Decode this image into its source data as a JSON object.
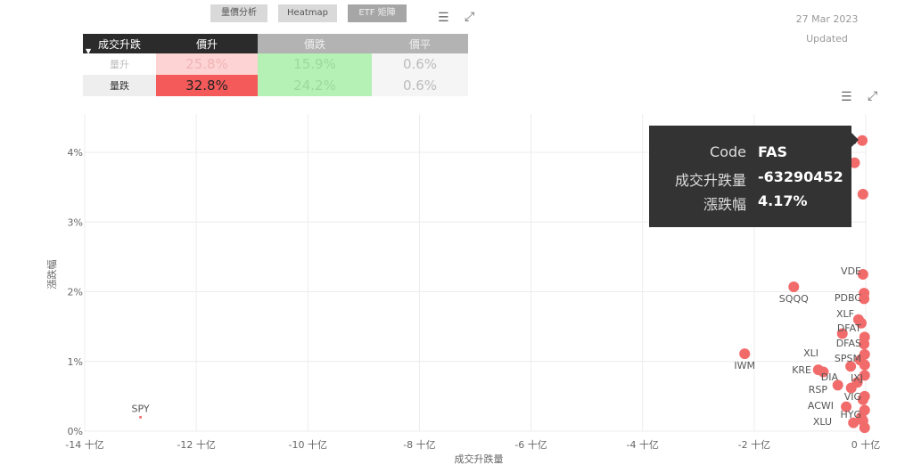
{
  "tabs": [
    {
      "label": "量價分析",
      "active": false
    },
    {
      "label": "Heatmap",
      "active": false
    },
    {
      "label": "ETF 矩陣",
      "active": true
    }
  ],
  "date": "27 Mar 2023",
  "updated_label": "Updated",
  "matrix": {
    "corner": "成交升跌",
    "columns": [
      "價升",
      "價跌",
      "價平"
    ],
    "rows": [
      {
        "label": "量升",
        "values": [
          "25.8%",
          "15.9%",
          "0.6%"
        ]
      },
      {
        "label": "量跌",
        "values": [
          "32.8%",
          "24.2%",
          "0.6%"
        ]
      }
    ]
  },
  "tooltip": {
    "rows": [
      {
        "key": "Code",
        "value": "FAS"
      },
      {
        "key": "成交升跌量",
        "value": "-63290452"
      },
      {
        "key": "漲跌幅",
        "value": "4.17%"
      }
    ]
  },
  "chart_data": {
    "type": "scatter",
    "xlabel": "成交升跌量",
    "ylabel": "漲跌幅",
    "xlim": [
      -14,
      0
    ],
    "ylim": [
      0,
      4.4
    ],
    "x_unit": "十亿",
    "xticks": [
      "-14 十亿",
      "-12 十亿",
      "-10 十亿",
      "-8 十亿",
      "-6 十亿",
      "-4 十亿",
      "-2 十亿",
      "0 十亿"
    ],
    "yticks": [
      "0%",
      "1%",
      "2%",
      "3%",
      "4%"
    ],
    "color": "#f26b6b",
    "points": [
      {
        "label": "SPY",
        "x": -13.0,
        "y": 0.2
      },
      {
        "label": "IWM",
        "x": -2.17,
        "y": 1.11
      },
      {
        "label": "SQQQ",
        "x": -1.29,
        "y": 2.07
      },
      {
        "label": "KRE",
        "x": -0.85,
        "y": 0.88
      },
      {
        "label": "XLI",
        "x": -0.76,
        "y": 0.85
      },
      {
        "label": "RSP",
        "x": -0.5,
        "y": 0.66
      },
      {
        "label": "DIA",
        "x": -0.26,
        "y": 0.62
      },
      {
        "label": "ACWI",
        "x": -0.35,
        "y": 0.35
      },
      {
        "label": "XLU",
        "x": -0.22,
        "y": 0.12
      },
      {
        "label": "DFAT",
        "x": -0.42,
        "y": 1.4
      },
      {
        "label": "XLF",
        "x": -0.13,
        "y": 1.6
      },
      {
        "label": "SPSM",
        "x": -0.27,
        "y": 0.93
      },
      {
        "label": "IXJ",
        "x": -0.15,
        "y": 0.7
      },
      {
        "label": "FAS",
        "x": -0.063,
        "y": 4.17
      },
      {
        "label": "",
        "x": -0.2,
        "y": 3.85
      },
      {
        "label": "",
        "x": -0.05,
        "y": 3.4
      },
      {
        "label": "VDE",
        "x": -0.05,
        "y": 2.25
      },
      {
        "label": "PDBC",
        "x": -0.03,
        "y": 1.98
      },
      {
        "label": "",
        "x": -0.03,
        "y": 1.9
      },
      {
        "label": "DFAS",
        "x": -0.03,
        "y": 1.25
      },
      {
        "label": "",
        "x": -0.08,
        "y": 1.55
      },
      {
        "label": "VIG",
        "x": -0.05,
        "y": 0.45
      },
      {
        "label": "HYG",
        "x": -0.08,
        "y": 0.2
      },
      {
        "label": "",
        "x": -0.02,
        "y": 1.35
      },
      {
        "label": "",
        "x": -0.02,
        "y": 1.1
      },
      {
        "label": "",
        "x": -0.1,
        "y": 1.02
      },
      {
        "label": "",
        "x": -0.02,
        "y": 0.8
      },
      {
        "label": "",
        "x": -0.02,
        "y": 0.5
      },
      {
        "label": "",
        "x": -0.02,
        "y": 0.3
      },
      {
        "label": "",
        "x": -0.02,
        "y": 0.05
      },
      {
        "label": "",
        "x": -0.05,
        "y": 0.15
      },
      {
        "label": "",
        "x": -0.02,
        "y": 0.95
      }
    ]
  }
}
